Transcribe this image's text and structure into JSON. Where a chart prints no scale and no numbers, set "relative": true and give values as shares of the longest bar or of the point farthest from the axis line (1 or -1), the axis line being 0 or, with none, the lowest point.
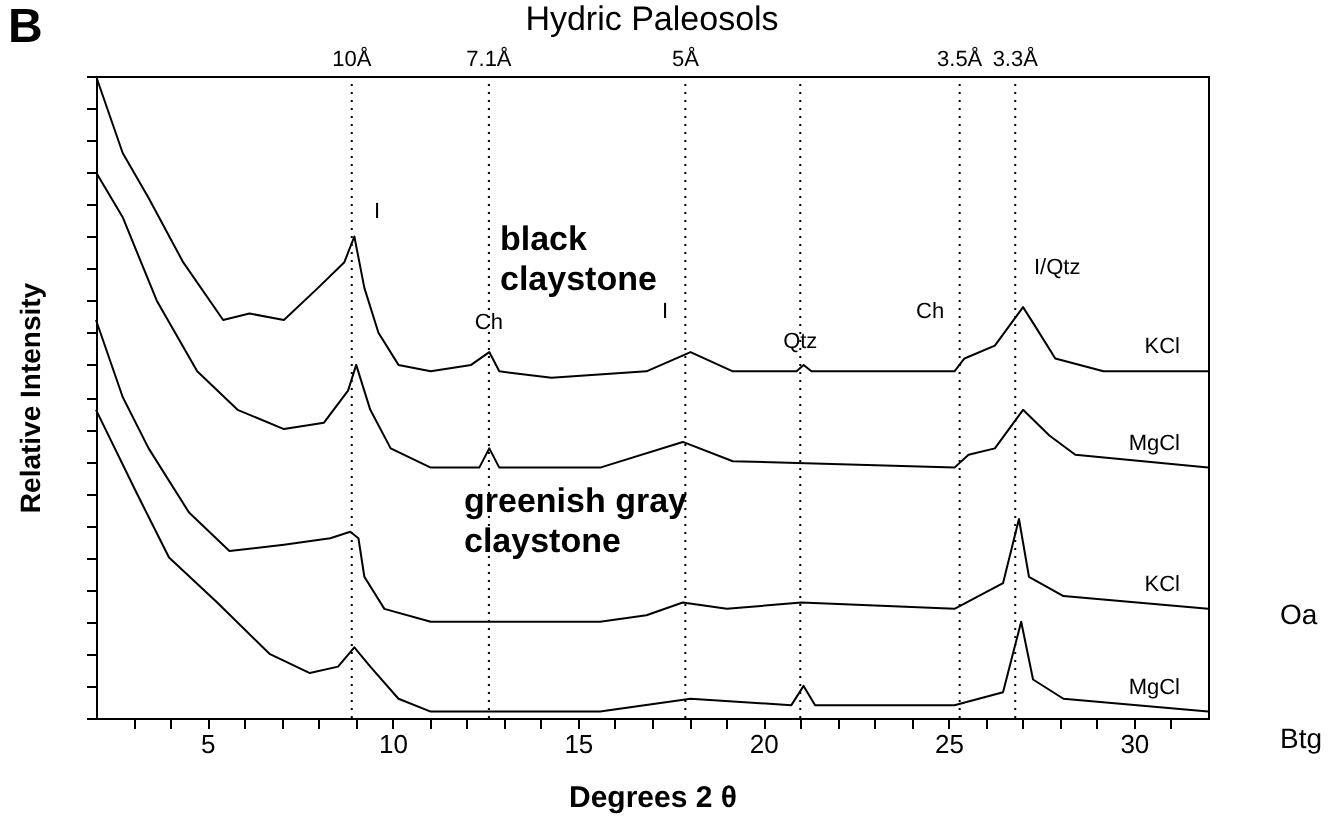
{
  "chart_data": {
    "type": "line",
    "title": "Hydric Paleosols",
    "xlabel": "Degrees 2 θ",
    "ylabel": "Relative Intensity",
    "relative": true,
    "xlim": [
      2,
      32
    ],
    "xticks": [
      {
        "value": 3,
        "label": null
      },
      {
        "value": 4,
        "label": null
      },
      5,
      {
        "value": 6,
        "label": null
      },
      {
        "value": 7,
        "label": null
      },
      {
        "value": 8,
        "label": null
      },
      {
        "value": 9,
        "label": null
      },
      10,
      {
        "value": 11,
        "label": null
      },
      {
        "value": 12,
        "label": null
      },
      {
        "value": 13,
        "label": null
      },
      {
        "value": 14,
        "label": null
      },
      15,
      {
        "value": 16,
        "label": null
      },
      {
        "value": 17,
        "label": null
      },
      {
        "value": 18,
        "label": null
      },
      {
        "value": 19,
        "label": null
      },
      20,
      {
        "value": 21,
        "label": null
      },
      {
        "value": 22,
        "label": null
      },
      {
        "value": 23,
        "label": null
      },
      {
        "value": 24,
        "label": null
      },
      25,
      {
        "value": 26,
        "label": null
      },
      {
        "value": 27,
        "label": null
      },
      {
        "value": 28,
        "label": null
      },
      {
        "value": 29,
        "label": null
      },
      30,
      {
        "value": 31,
        "label": null
      }
    ],
    "tick_labels": "x",
    "grid": false,
    "legend": false,
    "marker": "none",
    "line_style": "solid",
    "series": [
      {
        "name": "KCl",
        "color": "#000000",
        "x": [
          2.0,
          2.72,
          3.42,
          4.35,
          5.43,
          6.14,
          7.07,
          7.99,
          8.7,
          8.97,
          9.24,
          9.62,
          10.16,
          11.03,
          12.12,
          12.61,
          12.88,
          14.29,
          16.85,
          18.04,
          19.18,
          20.9,
          21.09,
          21.3,
          25.16,
          25.43,
          26.25,
          27.01,
          27.34,
          27.88,
          29.18,
          32.0
        ],
        "values": [
          1.0,
          0.88,
          0.81,
          0.71,
          0.62,
          0.63,
          0.62,
          0.67,
          0.71,
          0.75,
          0.67,
          0.6,
          0.55,
          0.54,
          0.55,
          0.57,
          0.54,
          0.53,
          0.54,
          0.57,
          0.54,
          0.54,
          0.55,
          0.54,
          0.54,
          0.56,
          0.58,
          0.64,
          0.61,
          0.56,
          0.54,
          0.54
        ]
      },
      {
        "name": "MgCl",
        "color": "#000000",
        "x": [
          2.0,
          2.72,
          3.64,
          4.73,
          5.82,
          7.07,
          8.15,
          8.8,
          9.02,
          9.4,
          9.95,
          11.03,
          12.34,
          12.61,
          12.88,
          15.6,
          17.83,
          19.18,
          25.16,
          25.54,
          26.25,
          27.01,
          27.72,
          28.42,
          32.0
        ],
        "values": [
          0.85,
          0.78,
          0.65,
          0.54,
          0.48,
          0.45,
          0.46,
          0.51,
          0.55,
          0.48,
          0.42,
          0.39,
          0.39,
          0.42,
          0.39,
          0.39,
          0.43,
          0.4,
          0.39,
          0.41,
          0.42,
          0.48,
          0.44,
          0.41,
          0.39
        ]
      },
      {
        "name": "KCl",
        "color": "#000000",
        "x": [
          2.0,
          2.72,
          3.42,
          4.51,
          5.6,
          7.07,
          8.32,
          8.86,
          9.08,
          9.24,
          9.78,
          11.03,
          15.6,
          16.85,
          17.83,
          19.02,
          21.03,
          25.16,
          26.47,
          26.9,
          27.17,
          28.1,
          32.0
        ],
        "values": [
          0.62,
          0.5,
          0.42,
          0.32,
          0.26,
          0.27,
          0.28,
          0.29,
          0.28,
          0.22,
          0.17,
          0.15,
          0.15,
          0.16,
          0.18,
          0.17,
          0.18,
          0.17,
          0.21,
          0.31,
          0.22,
          0.19,
          0.17
        ]
      },
      {
        "name": "MgCl",
        "color": "#000000",
        "x": [
          2.0,
          3.1,
          3.97,
          5.27,
          6.68,
          7.77,
          8.53,
          8.97,
          9.4,
          10.16,
          11.03,
          15.6,
          18.04,
          20.76,
          21.09,
          21.4,
          25.16,
          26.47,
          26.96,
          27.28,
          28.1,
          32.0
        ],
        "values": [
          0.48,
          0.35,
          0.25,
          0.18,
          0.1,
          0.07,
          0.08,
          0.11,
          0.08,
          0.03,
          0.01,
          0.01,
          0.03,
          0.02,
          0.05,
          0.02,
          0.02,
          0.04,
          0.15,
          0.06,
          0.03,
          0.01
        ]
      }
    ],
    "ref_lines": [
      {
        "axis": "x",
        "value": 8.9,
        "label": "10Å",
        "line_style": "dotted"
      },
      {
        "axis": "x",
        "value": 12.6,
        "label": "7.1Å",
        "line_style": "dotted"
      },
      {
        "axis": "x",
        "value": 17.9,
        "label": "5Å",
        "line_style": "dotted"
      },
      {
        "axis": "x",
        "value": 21.0,
        "line_style": "dotted"
      },
      {
        "axis": "x",
        "value": 25.3,
        "label": "3.5Å",
        "line_style": "dotted"
      },
      {
        "axis": "x",
        "value": 26.8,
        "label": "3.3Å",
        "line_style": "dotted"
      }
    ],
    "annotations": [
      "B",
      "black claystone",
      "greenish gray claystone",
      "Oa",
      "Btg",
      "I",
      "I",
      "Ch",
      "I/Qtz",
      {
        "text": "Ch",
        "x": 12.6,
        "y": 0.6
      },
      {
        "text": "Qtz",
        "x": 21.0,
        "y": 0.57
      }
    ]
  }
}
